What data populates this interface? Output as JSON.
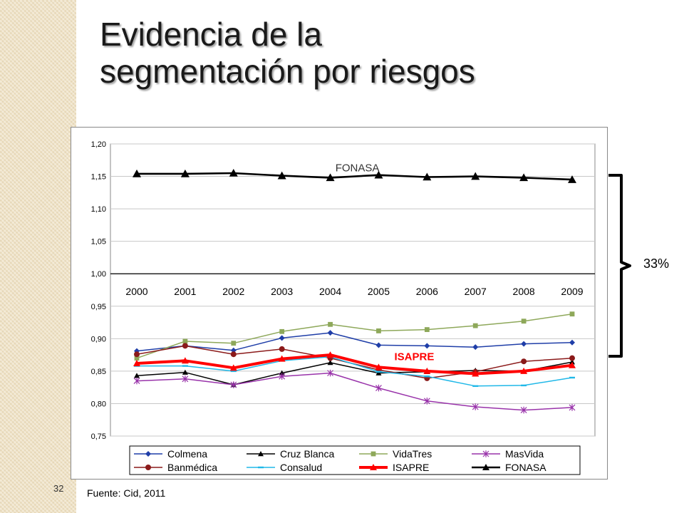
{
  "title": {
    "line1": "Evidencia de la",
    "line2": "segmentación por riesgos"
  },
  "annotation": {
    "percent": "33%"
  },
  "page_number": "32",
  "source": "Fuente: Cid, 2011",
  "chart_data": {
    "type": "line",
    "categories": [
      "2000",
      "2001",
      "2002",
      "2003",
      "2004",
      "2005",
      "2006",
      "2007",
      "2008",
      "2009"
    ],
    "ylim": [
      0.75,
      1.2
    ],
    "y_ticks": [
      "1,20",
      "1,15",
      "1,10",
      "1,05",
      "1,00",
      "0,95",
      "0,90",
      "0,85",
      "0,80",
      "0,75"
    ],
    "grid": true,
    "legend_position": "bottom",
    "annotations": [
      {
        "text": "FONASA",
        "series": "FONASA",
        "color": "#333333"
      },
      {
        "text": "ISAPRE",
        "series": "ISAPRE",
        "color": "#ff0000"
      }
    ],
    "series": [
      {
        "name": "Colmena",
        "color": "#1f3ea8",
        "marker": "diamond",
        "values": [
          0.881,
          0.889,
          0.882,
          0.901,
          0.909,
          0.89,
          0.889,
          0.887,
          0.892,
          0.894
        ]
      },
      {
        "name": "Cruz Blanca",
        "color": "#000000",
        "marker": "triangle",
        "values": [
          0.843,
          0.848,
          0.829,
          0.847,
          0.863,
          0.847,
          0.849,
          0.851,
          0.85,
          0.864
        ]
      },
      {
        "name": "VidaTres",
        "color": "#8ea85a",
        "marker": "square",
        "values": [
          0.87,
          0.896,
          0.893,
          0.911,
          0.922,
          0.912,
          0.914,
          0.92,
          0.927,
          0.938
        ]
      },
      {
        "name": "MasVida",
        "color": "#9933aa",
        "marker": "star",
        "values": [
          0.835,
          0.838,
          0.829,
          0.842,
          0.847,
          0.824,
          0.804,
          0.795,
          0.79,
          0.794
        ]
      },
      {
        "name": "Banmédica",
        "color": "#8b1a1a",
        "marker": "circle",
        "values": [
          0.876,
          0.889,
          0.876,
          0.884,
          0.87,
          0.852,
          0.839,
          0.849,
          0.865,
          0.87
        ]
      },
      {
        "name": "Consalud",
        "color": "#20b8e8",
        "marker": "dash",
        "values": [
          0.858,
          0.858,
          0.85,
          0.866,
          0.872,
          0.849,
          0.842,
          0.827,
          0.828,
          0.84
        ]
      },
      {
        "name": "ISAPRE",
        "color": "#ff0000",
        "marker": "triangle",
        "values": [
          0.862,
          0.866,
          0.855,
          0.869,
          0.875,
          0.856,
          0.85,
          0.846,
          0.85,
          0.859
        ]
      },
      {
        "name": "FONASA",
        "color": "#000000",
        "marker": "triangle",
        "values": [
          1.154,
          1.154,
          1.155,
          1.151,
          1.148,
          1.152,
          1.149,
          1.15,
          1.148,
          1.145
        ]
      }
    ]
  }
}
